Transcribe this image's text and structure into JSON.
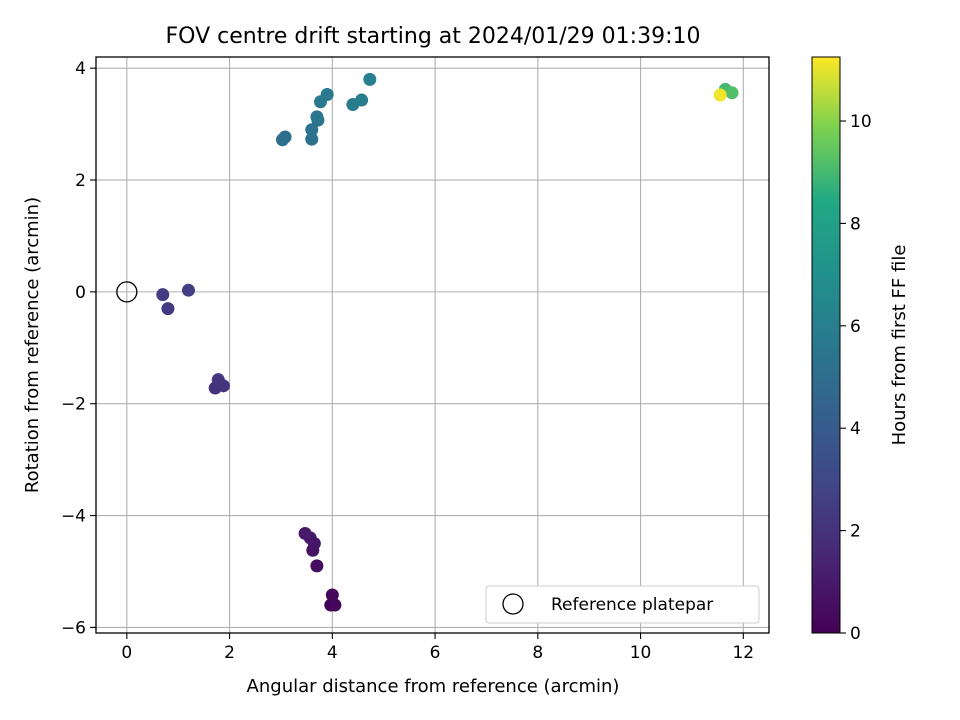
{
  "chart_data": {
    "type": "scatter",
    "title": "FOV centre drift starting at 2024/01/29 01:39:10",
    "xlabel": "Angular distance from reference (arcmin)",
    "ylabel": "Rotation from reference (arcmin)",
    "xlim": [
      -0.6,
      12.5
    ],
    "ylim": [
      -6.1,
      4.2
    ],
    "xticks": [
      0,
      2,
      4,
      6,
      8,
      10,
      12
    ],
    "yticks": [
      -6,
      -4,
      -2,
      0,
      2,
      4
    ],
    "grid": true,
    "legend": {
      "position": "lower-right",
      "entries": [
        "Reference platepar"
      ]
    },
    "reference": {
      "x": 0,
      "y": 0,
      "label": "Reference platepar"
    },
    "colorbar": {
      "label": "Hours from first FF file",
      "range": [
        0,
        11.25
      ],
      "ticks": [
        0,
        2,
        4,
        6,
        8,
        10
      ],
      "colormap": "viridis"
    },
    "points": [
      {
        "x": 3.97,
        "y": -5.6,
        "t": 0.1
      },
      {
        "x": 4.05,
        "y": -5.6,
        "t": 0.2
      },
      {
        "x": 4.0,
        "y": -5.42,
        "t": 0.3
      },
      {
        "x": 3.7,
        "y": -4.9,
        "t": 0.5
      },
      {
        "x": 3.62,
        "y": -4.62,
        "t": 0.7
      },
      {
        "x": 3.65,
        "y": -4.5,
        "t": 0.8
      },
      {
        "x": 3.57,
        "y": -4.4,
        "t": 0.9
      },
      {
        "x": 3.47,
        "y": -4.32,
        "t": 1.0
      },
      {
        "x": 1.72,
        "y": -1.72,
        "t": 2.0
      },
      {
        "x": 1.88,
        "y": -1.68,
        "t": 2.1
      },
      {
        "x": 1.78,
        "y": -1.57,
        "t": 2.2
      },
      {
        "x": 0.8,
        "y": -0.3,
        "t": 2.4
      },
      {
        "x": 0.7,
        "y": -0.05,
        "t": 2.5
      },
      {
        "x": 1.2,
        "y": 0.03,
        "t": 2.6
      },
      {
        "x": 3.03,
        "y": 2.72,
        "t": 5.0
      },
      {
        "x": 3.08,
        "y": 2.77,
        "t": 5.1
      },
      {
        "x": 3.6,
        "y": 2.73,
        "t": 5.2
      },
      {
        "x": 3.6,
        "y": 2.9,
        "t": 5.3
      },
      {
        "x": 3.72,
        "y": 3.07,
        "t": 5.4
      },
      {
        "x": 3.7,
        "y": 3.13,
        "t": 5.5
      },
      {
        "x": 3.77,
        "y": 3.4,
        "t": 5.6
      },
      {
        "x": 3.9,
        "y": 3.53,
        "t": 5.7
      },
      {
        "x": 4.4,
        "y": 3.35,
        "t": 5.8
      },
      {
        "x": 4.57,
        "y": 3.43,
        "t": 5.9
      },
      {
        "x": 4.73,
        "y": 3.8,
        "t": 6.0
      },
      {
        "x": 11.65,
        "y": 3.62,
        "t": 9.0
      },
      {
        "x": 11.78,
        "y": 3.56,
        "t": 9.2
      },
      {
        "x": 11.55,
        "y": 3.52,
        "t": 11.1
      }
    ]
  }
}
